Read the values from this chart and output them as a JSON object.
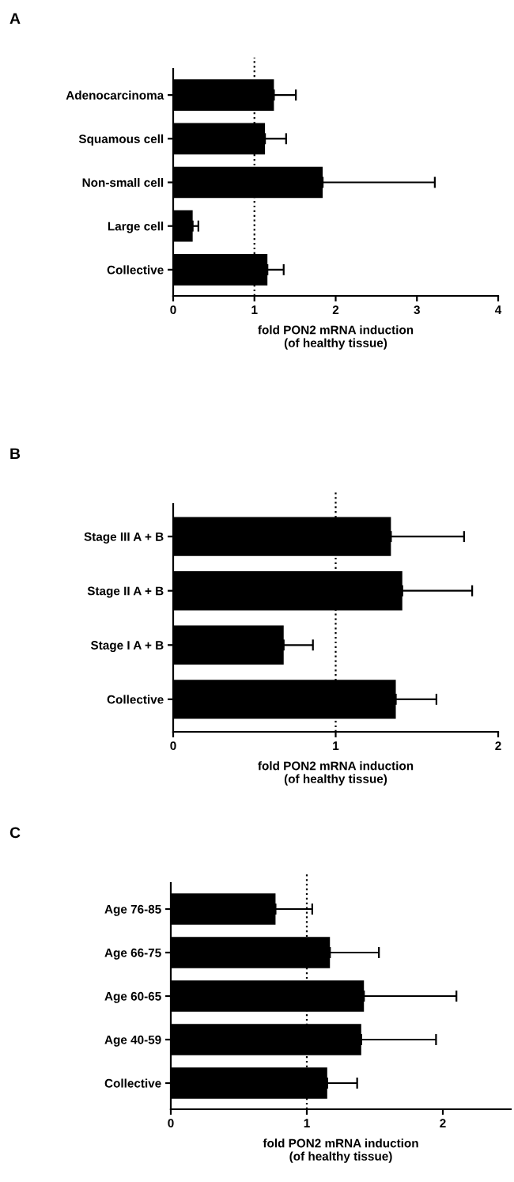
{
  "chart_data": [
    {
      "type": "bar",
      "orientation": "horizontal",
      "title": "A",
      "xlabel": "fold PON2 mRNA induction\n(of healthy tissue)",
      "categories": [
        "Adenocarcinoma",
        "Squamous cell",
        "Non-small cell",
        "Large cell",
        "Collective"
      ],
      "values": [
        1.24,
        1.13,
        1.84,
        0.24,
        1.16
      ],
      "color": "#000000",
      "errors": [
        [
          1.24,
          1.51
        ],
        [
          1.13,
          1.39
        ],
        [
          1.84,
          3.22
        ],
        [
          0.24,
          0.31
        ],
        [
          1.16,
          1.36
        ]
      ],
      "xlim": [
        0,
        4
      ],
      "xticks": [
        0,
        1,
        2,
        3,
        4
      ],
      "ref_lines": [
        {
          "axis": "x",
          "value": 1,
          "line_style": "dotted",
          "color": "#000000"
        }
      ]
    },
    {
      "type": "bar",
      "orientation": "horizontal",
      "title": "B",
      "xlabel": "fold PON2 mRNA induction\n(of healthy tissue)",
      "categories": [
        "Stage III A + B",
        "Stage II A + B",
        "Stage I A + B",
        "Collective"
      ],
      "values": [
        1.34,
        1.41,
        0.68,
        1.37
      ],
      "color": "#000000",
      "errors": [
        [
          1.34,
          1.79
        ],
        [
          1.41,
          1.84
        ],
        [
          0.68,
          0.86
        ],
        [
          1.37,
          1.62
        ]
      ],
      "xlim": [
        0,
        2
      ],
      "xticks": [
        0,
        1,
        2
      ],
      "ref_lines": [
        {
          "axis": "x",
          "value": 1,
          "line_style": "dotted",
          "color": "#000000"
        }
      ]
    },
    {
      "type": "bar",
      "orientation": "horizontal",
      "title": "C",
      "xlabel": "fold PON2 mRNA induction\n(of healthy tissue)",
      "categories": [
        "Age 76-85",
        "Age 66-75",
        "Age 60-65",
        "Age 40-59",
        "Collective"
      ],
      "values": [
        0.77,
        1.17,
        1.42,
        1.4,
        1.15
      ],
      "color": "#000000",
      "errors": [
        [
          0.77,
          1.04
        ],
        [
          1.17,
          1.53
        ],
        [
          1.42,
          2.1
        ],
        [
          1.4,
          1.95
        ],
        [
          1.15,
          1.37
        ]
      ],
      "xlim": [
        0,
        2.5
      ],
      "xticks": [
        0,
        1,
        2
      ],
      "ref_lines": [
        {
          "axis": "x",
          "value": 1,
          "line_style": "dotted",
          "color": "#000000"
        }
      ]
    }
  ]
}
